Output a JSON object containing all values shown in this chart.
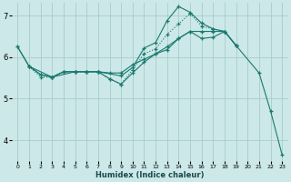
{
  "xlabel": "Humidex (Indice chaleur)",
  "background_color": "#cce8e8",
  "grid_color": "#aacccc",
  "line_color": "#1a7a6e",
  "xlim": [
    -0.5,
    23.5
  ],
  "ylim": [
    3.5,
    7.3
  ],
  "yticks": [
    4,
    5,
    6,
    7
  ],
  "xticks": [
    0,
    1,
    2,
    3,
    4,
    5,
    6,
    7,
    8,
    9,
    10,
    11,
    12,
    13,
    14,
    15,
    16,
    17,
    18,
    19,
    20,
    21,
    22,
    23
  ],
  "line1_x": [
    0,
    1,
    2,
    3,
    4,
    5,
    6,
    7,
    8,
    9,
    10,
    11,
    12,
    13,
    14,
    15,
    16,
    17,
    18,
    19
  ],
  "line1_y": [
    6.25,
    5.78,
    5.58,
    5.52,
    5.65,
    5.65,
    5.65,
    5.65,
    5.62,
    5.62,
    5.82,
    5.95,
    6.08,
    6.18,
    6.45,
    6.62,
    6.62,
    6.62,
    6.62,
    6.28
  ],
  "line2_x": [
    1,
    2,
    3,
    4,
    5,
    6,
    7,
    8,
    9,
    10,
    11,
    12,
    13,
    14,
    15,
    16,
    17,
    18,
    19
  ],
  "line2_y": [
    5.78,
    5.52,
    5.52,
    5.65,
    5.65,
    5.65,
    5.65,
    5.48,
    5.35,
    5.7,
    6.08,
    6.2,
    6.55,
    6.8,
    7.05,
    6.75,
    6.68,
    6.62,
    6.28
  ],
  "line3_x": [
    1,
    3,
    5,
    6,
    7,
    9,
    10,
    11,
    12,
    13,
    14,
    15,
    16,
    17,
    18,
    19
  ],
  "line3_y": [
    5.78,
    5.52,
    5.65,
    5.65,
    5.65,
    5.55,
    5.75,
    6.22,
    6.35,
    6.88,
    7.22,
    7.08,
    6.82,
    6.68,
    6.62,
    6.28
  ],
  "line4_x": [
    0,
    1,
    2,
    3,
    4,
    5,
    6,
    7,
    8,
    9,
    10,
    11,
    12,
    13,
    14,
    15,
    16,
    17,
    18,
    19,
    21,
    22,
    23
  ],
  "line4_y": [
    6.25,
    5.78,
    5.58,
    5.52,
    5.65,
    5.65,
    5.65,
    5.65,
    5.48,
    5.35,
    5.62,
    5.88,
    6.08,
    6.25,
    6.45,
    6.62,
    6.45,
    6.48,
    6.62,
    6.28,
    5.62,
    4.7,
    3.65
  ]
}
